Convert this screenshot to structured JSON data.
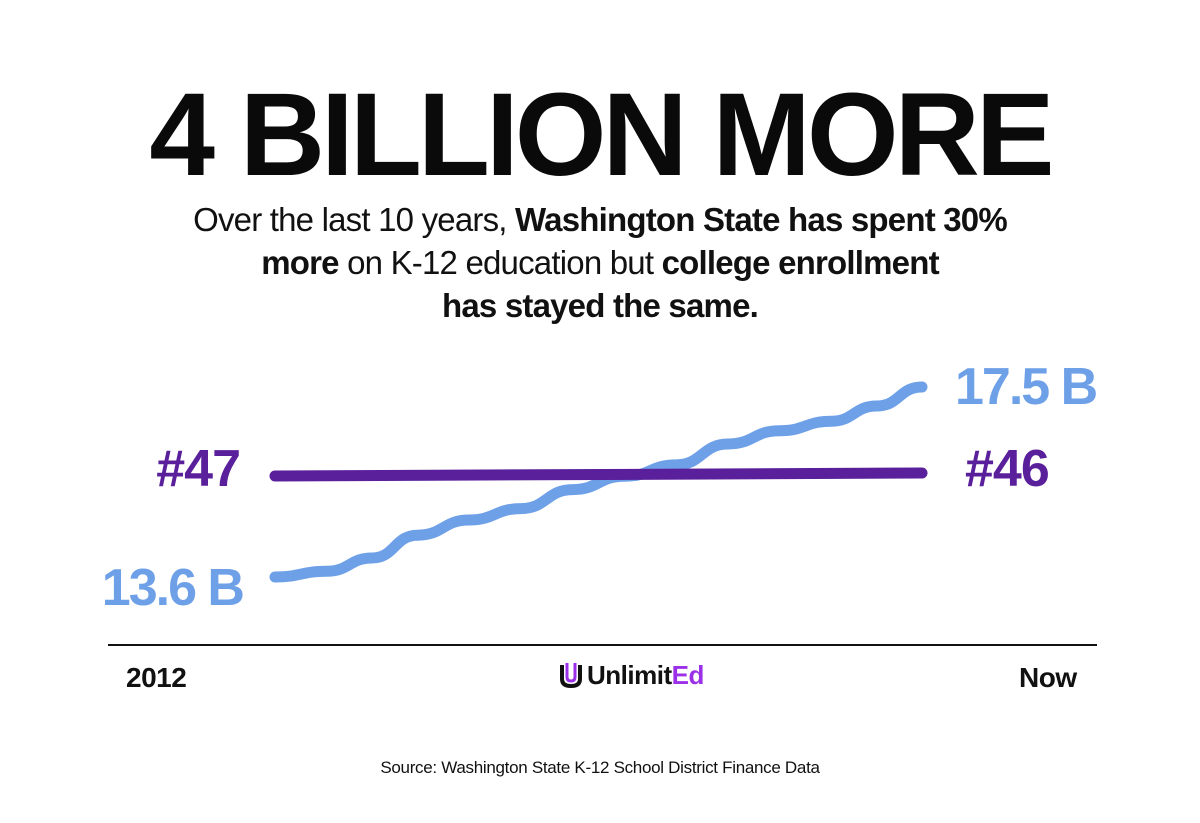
{
  "headline": "4 BILLION MORE",
  "subtitle": {
    "p1": "Over the last 10 years, ",
    "b1": "Washington State has spent 30%",
    "b2": "more",
    "p2": " on K-12 education but ",
    "b3": "college enrollment",
    "b4": "has  stayed the same."
  },
  "chart_data": {
    "type": "line",
    "x": [
      "2012",
      "Now"
    ],
    "series": [
      {
        "values": [
          13.6,
          17.5
        ],
        "start_label": "13.6 B",
        "end_label": "17.5 B",
        "color": "#6ea0e8"
      },
      {
        "values": [
          47,
          46
        ],
        "start_label": "#47",
        "end_label": "#46",
        "color": "#5a1f9a"
      }
    ]
  },
  "x_axis": {
    "start": "2012",
    "end": "Now"
  },
  "logo": {
    "part1": "Unlimit",
    "part2": "Ed",
    "accent_color": "#9b30e8",
    "icon": "unlimited-logo-mark-icon"
  },
  "source": "Source: Washington State K-12 School District Finance Data"
}
